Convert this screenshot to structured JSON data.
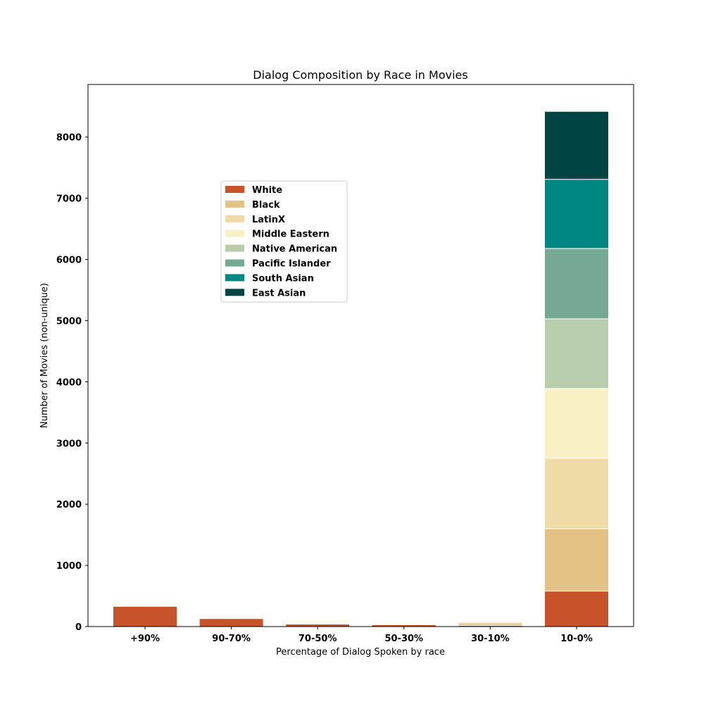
{
  "chart_data": {
    "type": "bar",
    "stacked": true,
    "title": "Dialog Composition by Race in Movies",
    "xlabel": "Percentage of Dialog Spoken by race",
    "ylabel": "Number of Movies (non-unique)",
    "categories": [
      "+90%",
      "90-70%",
      "70-50%",
      "50-30%",
      "30-10%",
      "10-0%"
    ],
    "ylim": [
      0,
      8860
    ],
    "yticks": [
      0,
      1000,
      2000,
      3000,
      4000,
      5000,
      6000,
      7000,
      8000
    ],
    "grid": false,
    "legend_position": "upper-left-center",
    "series": [
      {
        "name": "White",
        "color": "#c8532b",
        "values": [
          330,
          130,
          40,
          30,
          20,
          580
        ]
      },
      {
        "name": "Black",
        "color": "#e4c184",
        "values": [
          0,
          0,
          0,
          0,
          40,
          1020
        ]
      },
      {
        "name": "LatinX",
        "color": "#efdba5",
        "values": [
          0,
          0,
          0,
          0,
          20,
          1150
        ]
      },
      {
        "name": "Middle Eastern",
        "color": "#f9f1c3",
        "values": [
          0,
          0,
          0,
          0,
          0,
          1140
        ]
      },
      {
        "name": "Native American",
        "color": "#b8cdab",
        "values": [
          0,
          0,
          0,
          0,
          0,
          1140
        ]
      },
      {
        "name": "Pacific Islander",
        "color": "#76a993",
        "values": [
          0,
          0,
          0,
          0,
          0,
          1150
        ]
      },
      {
        "name": "South Asian",
        "color": "#008782",
        "values": [
          0,
          0,
          0,
          0,
          0,
          1130
        ]
      },
      {
        "name": "East Asian",
        "color": "#004543",
        "values": [
          0,
          0,
          0,
          0,
          0,
          1110
        ]
      }
    ]
  }
}
